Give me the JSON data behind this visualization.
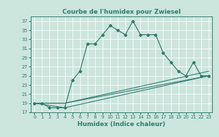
{
  "title": "Courbe de l'humidex pour Zwiesel",
  "xlabel": "Humidex (Indice chaleur)",
  "background_color": "#cce5dd",
  "grid_color": "#ffffff",
  "line_color": "#2e7d6e",
  "xlim": [
    -0.5,
    23.5
  ],
  "ylim": [
    17,
    38
  ],
  "xticks": [
    0,
    1,
    2,
    3,
    4,
    5,
    6,
    7,
    8,
    9,
    10,
    11,
    12,
    13,
    14,
    15,
    16,
    17,
    18,
    19,
    20,
    21,
    22,
    23
  ],
  "yticks": [
    17,
    19,
    21,
    23,
    25,
    27,
    29,
    31,
    33,
    35,
    37
  ],
  "main_line_x": [
    0,
    1,
    2,
    3,
    4,
    5,
    6,
    7,
    8,
    9,
    10,
    11,
    12,
    13,
    14,
    15,
    16,
    17,
    18,
    19,
    20,
    21,
    22,
    23
  ],
  "main_line_y": [
    19,
    19,
    18,
    18,
    18,
    24,
    26,
    32,
    32,
    34,
    36,
    35,
    34,
    37,
    34,
    34,
    34,
    30,
    28,
    26,
    25,
    28,
    25,
    25
  ],
  "line2_x": [
    0,
    4,
    23
  ],
  "line2_y": [
    19,
    19,
    25
  ],
  "line3_x": [
    0,
    4,
    23
  ],
  "line3_y": [
    19,
    19,
    26
  ],
  "line4_x": [
    0,
    4,
    23
  ],
  "line4_y": [
    19,
    18,
    25
  ]
}
